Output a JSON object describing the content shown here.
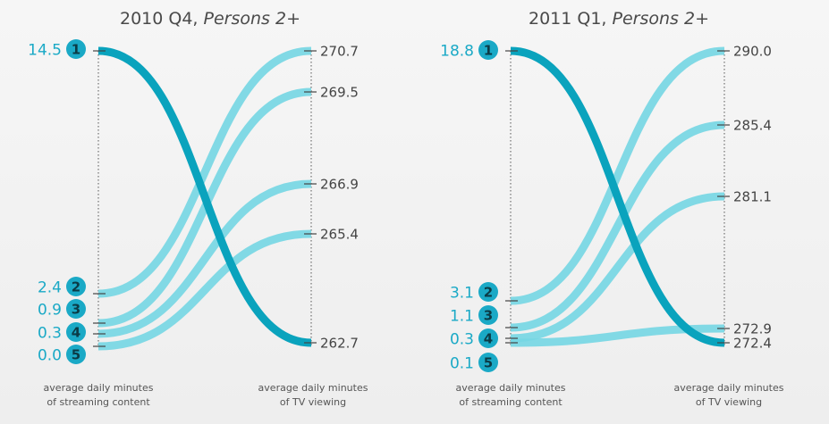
{
  "chart_data": [
    {
      "type": "slope",
      "title": "2010 Q4, ",
      "title_italic": "Persons 2+",
      "left_label_line1": "average daily minutes",
      "left_label_line2": "of streaming content",
      "right_label_line1": "average daily minutes",
      "right_label_line2": "of TV viewing",
      "left_scale": [
        0,
        14.5
      ],
      "right_scale": [
        262.7,
        270.7
      ],
      "rows": [
        {
          "rank": "1",
          "streaming": 14.5,
          "streaming_label": "14.5",
          "tv": 262.7,
          "tv_label": "262.7"
        },
        {
          "rank": "2",
          "streaming": 2.4,
          "streaming_label": "2.4",
          "tv": 270.7,
          "tv_label": "270.7"
        },
        {
          "rank": "3",
          "streaming": 0.9,
          "streaming_label": "0.9",
          "tv": 269.5,
          "tv_label": "269.5"
        },
        {
          "rank": "4",
          "streaming": 0.3,
          "streaming_label": "0.3",
          "tv": 266.9,
          "tv_label": "266.9"
        },
        {
          "rank": "5",
          "streaming": 0.0,
          "streaming_label": "0.0",
          "tv": 265.4,
          "tv_label": "265.4"
        }
      ]
    },
    {
      "type": "slope",
      "title": "2011 Q1, ",
      "title_italic": "Persons 2+",
      "left_label_line1": "average daily minutes",
      "left_label_line2": "of streaming content",
      "right_label_line1": "average daily minutes",
      "right_label_line2": "of TV viewing",
      "left_scale": [
        0,
        18.8
      ],
      "right_scale": [
        272.4,
        290.0
      ],
      "rows": [
        {
          "rank": "1",
          "streaming": 18.8,
          "streaming_label": "18.8",
          "tv": 272.4,
          "tv_label": "272.4"
        },
        {
          "rank": "2",
          "streaming": 3.1,
          "streaming_label": "3.1",
          "tv": 290.0,
          "tv_label": "290.0"
        },
        {
          "rank": "3",
          "streaming": 1.1,
          "streaming_label": "1.1",
          "tv": 285.4,
          "tv_label": "285.4"
        },
        {
          "rank": "4",
          "streaming": 0.3,
          "streaming_label": "0.3",
          "tv": 281.1,
          "tv_label": "281.1"
        },
        {
          "rank": "5",
          "streaming": 0.1,
          "streaming_label": "0.1",
          "tv": 272.9,
          "tv_label": "272.9"
        }
      ]
    }
  ],
  "colors": {
    "highlight_line": "#0aa3bd",
    "other_line": "#74d6e3",
    "badge": "#1aa9c6",
    "left_value": "#1aa9c6"
  }
}
